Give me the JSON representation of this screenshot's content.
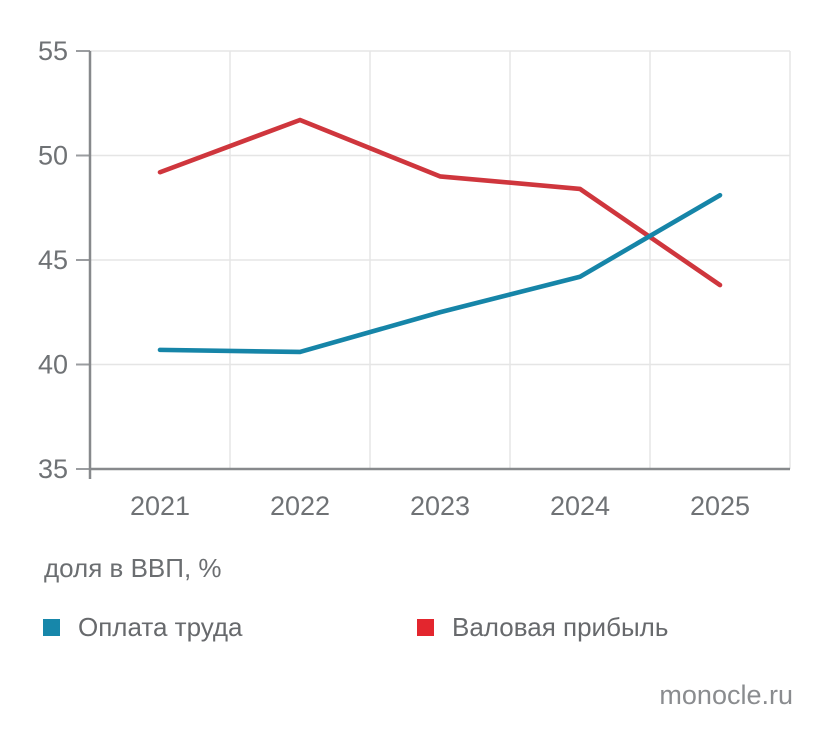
{
  "chart_data": {
    "type": "line",
    "title": "",
    "caption": "доля в ВВП, %",
    "categories": [
      "2021",
      "2022",
      "2023",
      "2024",
      "2025"
    ],
    "series": [
      {
        "name": "Оплата труда",
        "color": "#1685a8",
        "swatch_color": "#1787aa",
        "values": [
          40.7,
          40.6,
          42.5,
          44.2,
          48.1
        ]
      },
      {
        "name": "Валовая прибыль",
        "color": "#cf363d",
        "swatch_color": "#e3262e",
        "values": [
          49.2,
          51.7,
          49.0,
          48.4,
          43.8
        ]
      }
    ],
    "ylim": [
      35,
      55
    ],
    "yticks": [
      35,
      40,
      45,
      50,
      55
    ],
    "xlabel": "",
    "ylabel": "",
    "grid": true,
    "legend_position": "bottom"
  },
  "source": {
    "label": "monocle.ru"
  }
}
